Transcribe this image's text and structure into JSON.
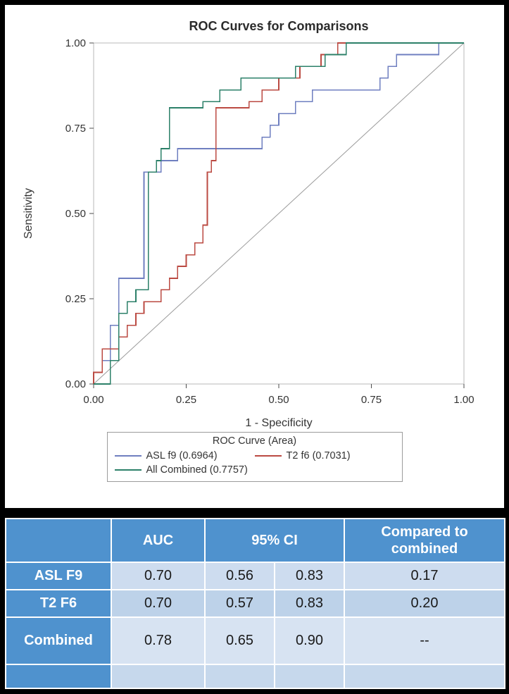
{
  "chart_data": {
    "type": "line",
    "subtype": "roc-step-curves",
    "title": "ROC Curves for Comparisons",
    "xlabel": "1 - Specificity",
    "ylabel": "Sensitivity",
    "xlim": [
      0,
      1
    ],
    "ylim": [
      0,
      1
    ],
    "grid": false,
    "x_ticks": {
      "values": [
        0,
        0.25,
        0.5,
        0.75,
        1
      ],
      "labels": [
        "0.00",
        "0.25",
        "0.50",
        "0.75",
        "1.00"
      ]
    },
    "y_ticks": {
      "values": [
        0,
        0.25,
        0.5,
        0.75,
        1
      ],
      "labels": [
        "0.00",
        "0.25",
        "0.50",
        "0.75",
        "1.00"
      ]
    },
    "frame_color": "#b9b9b9",
    "tick_color": "#4d4d4d",
    "text_color": "#333333",
    "title_color": "#2b2b2b",
    "reference_line": {
      "from": [
        0,
        0
      ],
      "to": [
        1,
        1
      ],
      "color": "#9b9b9b"
    },
    "series": [
      {
        "id": "asl-f9",
        "name": "ASL f9",
        "auc": 0.6964,
        "color": "#6f7fc0",
        "points": [
          [
            0,
            0
          ],
          [
            0,
            0.034
          ],
          [
            0.023,
            0.034
          ],
          [
            0.023,
            0.069
          ],
          [
            0.045,
            0.069
          ],
          [
            0.045,
            0.172
          ],
          [
            0.068,
            0.172
          ],
          [
            0.068,
            0.31
          ],
          [
            0.136,
            0.31
          ],
          [
            0.136,
            0.621
          ],
          [
            0.182,
            0.621
          ],
          [
            0.182,
            0.655
          ],
          [
            0.227,
            0.655
          ],
          [
            0.227,
            0.69
          ],
          [
            0.455,
            0.69
          ],
          [
            0.455,
            0.724
          ],
          [
            0.477,
            0.724
          ],
          [
            0.477,
            0.759
          ],
          [
            0.5,
            0.759
          ],
          [
            0.5,
            0.793
          ],
          [
            0.545,
            0.793
          ],
          [
            0.545,
            0.828
          ],
          [
            0.591,
            0.828
          ],
          [
            0.591,
            0.862
          ],
          [
            0.773,
            0.862
          ],
          [
            0.773,
            0.897
          ],
          [
            0.795,
            0.897
          ],
          [
            0.795,
            0.931
          ],
          [
            0.818,
            0.931
          ],
          [
            0.818,
            0.966
          ],
          [
            0.932,
            0.966
          ],
          [
            0.932,
            1
          ],
          [
            1,
            1
          ]
        ]
      },
      {
        "id": "t2-f6",
        "name": "T2 f6",
        "auc": 0.7031,
        "color": "#bb4a42",
        "points": [
          [
            0,
            0
          ],
          [
            0,
            0.034
          ],
          [
            0.023,
            0.034
          ],
          [
            0.023,
            0.103
          ],
          [
            0.068,
            0.103
          ],
          [
            0.068,
            0.138
          ],
          [
            0.091,
            0.138
          ],
          [
            0.091,
            0.172
          ],
          [
            0.114,
            0.172
          ],
          [
            0.114,
            0.207
          ],
          [
            0.136,
            0.207
          ],
          [
            0.136,
            0.241
          ],
          [
            0.182,
            0.241
          ],
          [
            0.182,
            0.276
          ],
          [
            0.205,
            0.276
          ],
          [
            0.205,
            0.31
          ],
          [
            0.227,
            0.31
          ],
          [
            0.227,
            0.345
          ],
          [
            0.25,
            0.345
          ],
          [
            0.25,
            0.379
          ],
          [
            0.273,
            0.379
          ],
          [
            0.273,
            0.414
          ],
          [
            0.295,
            0.414
          ],
          [
            0.295,
            0.466
          ],
          [
            0.307,
            0.466
          ],
          [
            0.307,
            0.621
          ],
          [
            0.318,
            0.621
          ],
          [
            0.318,
            0.655
          ],
          [
            0.33,
            0.655
          ],
          [
            0.33,
            0.81
          ],
          [
            0.42,
            0.81
          ],
          [
            0.42,
            0.828
          ],
          [
            0.455,
            0.828
          ],
          [
            0.455,
            0.862
          ],
          [
            0.5,
            0.862
          ],
          [
            0.5,
            0.897
          ],
          [
            0.557,
            0.897
          ],
          [
            0.557,
            0.931
          ],
          [
            0.614,
            0.931
          ],
          [
            0.614,
            0.966
          ],
          [
            0.659,
            0.966
          ],
          [
            0.659,
            1
          ],
          [
            1,
            1
          ]
        ]
      },
      {
        "id": "all-combined",
        "name": "All Combined",
        "auc": 0.7757,
        "color": "#2c8069",
        "points": [
          [
            0,
            0
          ],
          [
            0.045,
            0
          ],
          [
            0.045,
            0.069
          ],
          [
            0.068,
            0.069
          ],
          [
            0.068,
            0.207
          ],
          [
            0.091,
            0.207
          ],
          [
            0.091,
            0.241
          ],
          [
            0.114,
            0.241
          ],
          [
            0.114,
            0.276
          ],
          [
            0.148,
            0.276
          ],
          [
            0.148,
            0.621
          ],
          [
            0.17,
            0.621
          ],
          [
            0.17,
            0.655
          ],
          [
            0.182,
            0.655
          ],
          [
            0.182,
            0.69
          ],
          [
            0.205,
            0.69
          ],
          [
            0.205,
            0.81
          ],
          [
            0.295,
            0.81
          ],
          [
            0.295,
            0.828
          ],
          [
            0.341,
            0.828
          ],
          [
            0.341,
            0.862
          ],
          [
            0.398,
            0.862
          ],
          [
            0.398,
            0.897
          ],
          [
            0.545,
            0.897
          ],
          [
            0.545,
            0.931
          ],
          [
            0.625,
            0.931
          ],
          [
            0.625,
            0.966
          ],
          [
            0.682,
            0.966
          ],
          [
            0.682,
            1
          ],
          [
            1,
            1
          ]
        ]
      }
    ],
    "legend": {
      "title": "ROC Curve (Area)",
      "position": "bottom",
      "entries": [
        {
          "label": "ASL f9  (0.6964)"
        },
        {
          "label": "T2 f6  (0.7031)"
        },
        {
          "label": "All Combined  (0.7757)"
        }
      ]
    }
  },
  "table": {
    "header": {
      "corner": "",
      "auc": "AUC",
      "ci": "95% CI",
      "compared": "Compared to\ncombined"
    },
    "rows": [
      {
        "label": "ASL F9",
        "auc": "0.70",
        "ci_low": "0.56",
        "ci_high": "0.83",
        "compared": "0.17"
      },
      {
        "label": "T2 F6",
        "auc": "0.70",
        "ci_low": "0.57",
        "ci_high": "0.83",
        "compared": "0.20"
      },
      {
        "label": "Combined",
        "auc": "0.78",
        "ci_low": "0.65",
        "ci_high": "0.90",
        "compared": "--"
      }
    ]
  }
}
